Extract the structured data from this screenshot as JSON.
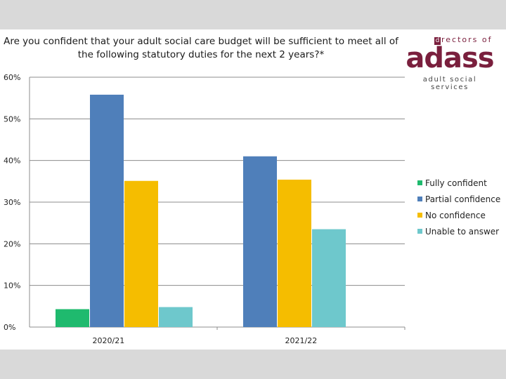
{
  "chart_data": {
    "type": "bar",
    "title": "Are you confident that your adult social care budget will be sufficient to meet all of the following statutory duties for the next 2 years?*",
    "categories": [
      "2020/21",
      "2021/22"
    ],
    "ylim": [
      0,
      60
    ],
    "yticks": [
      "0%",
      "10%",
      "20%",
      "30%",
      "40%",
      "50%",
      "60%"
    ],
    "ytick_values": [
      0,
      10,
      20,
      30,
      40,
      50,
      60
    ],
    "grid": true,
    "legend_position": "right",
    "series": [
      {
        "name": "Fully confident",
        "color": "#1fba6e",
        "values": [
          4.3,
          null
        ]
      },
      {
        "name": "Partial confidence",
        "color": "#4f7fba",
        "values": [
          55.8,
          41.0
        ]
      },
      {
        "name": "No confidence",
        "color": "#f5bd00",
        "values": [
          35.1,
          35.4
        ]
      },
      {
        "name": "Unable to answer",
        "color": "#6ec8cc",
        "values": [
          4.8,
          23.5
        ]
      }
    ]
  },
  "logo": {
    "top_letter": "d",
    "top_rest": "rectors of",
    "main": "adass",
    "sub": "adult social services"
  }
}
